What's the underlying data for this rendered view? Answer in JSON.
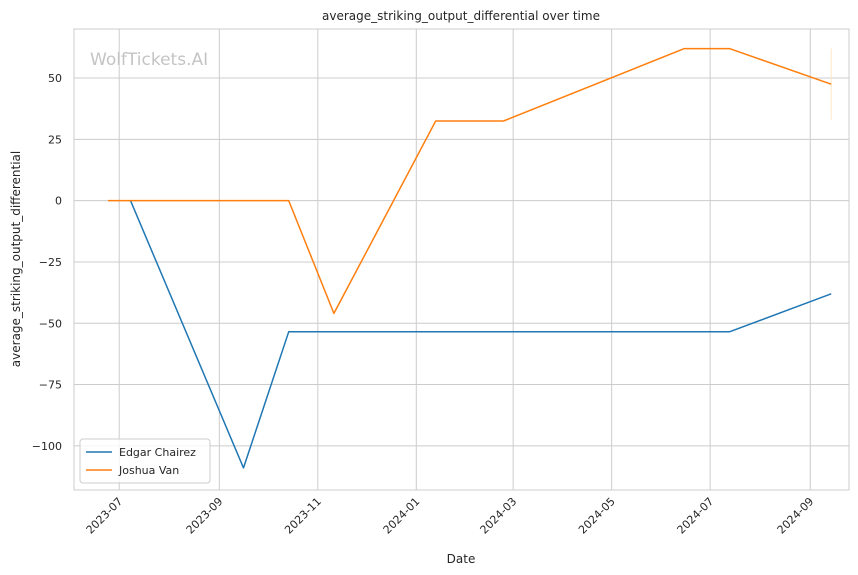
{
  "chart_data": {
    "type": "line",
    "title": "average_striking_output_differential over time",
    "xlabel": "Date",
    "ylabel": "average_striking_output_differential",
    "watermark": "WolfTickets.AI",
    "xlim": [
      "2023-06-03",
      "2024-09-25"
    ],
    "ylim": [
      -118,
      70
    ],
    "x_ticks": [
      "2023-07-01",
      "2023-09-01",
      "2023-11-01",
      "2024-01-01",
      "2024-03-01",
      "2024-05-01",
      "2024-07-01",
      "2024-09-01"
    ],
    "x_tick_labels": [
      "2023-07",
      "2023-09",
      "2023-11",
      "2024-01",
      "2024-03",
      "2024-05",
      "2024-07",
      "2024-09"
    ],
    "y_ticks": [
      50,
      25,
      0,
      -25,
      -50,
      -75,
      -100
    ],
    "y_tick_labels": [
      "50",
      "25",
      "0",
      "−25",
      "−50",
      "−75",
      "−100"
    ],
    "grid": true,
    "legend_position": "lower-left",
    "series": [
      {
        "name": "Edgar Chairez",
        "color": "#1f77b4",
        "points": [
          {
            "x": "2023-07-08",
            "y": 0
          },
          {
            "x": "2023-09-16",
            "y": -109
          },
          {
            "x": "2023-10-14",
            "y": -53.5
          },
          {
            "x": "2024-07-13",
            "y": -53.5
          },
          {
            "x": "2024-09-14",
            "y": -38
          }
        ]
      },
      {
        "name": "Joshua Van",
        "color": "#ff7f0e",
        "points": [
          {
            "x": "2023-06-24",
            "y": 0
          },
          {
            "x": "2023-10-14",
            "y": 0
          },
          {
            "x": "2023-11-11",
            "y": -46
          },
          {
            "x": "2024-01-13",
            "y": 32.5
          },
          {
            "x": "2024-02-24",
            "y": 32.5
          },
          {
            "x": "2024-06-15",
            "y": 62
          },
          {
            "x": "2024-07-13",
            "y": 62
          },
          {
            "x": "2024-09-14",
            "y": 47.5
          }
        ]
      }
    ],
    "annotations": [
      {
        "x": "2024-09-14",
        "y_range": [
          33,
          62
        ],
        "color": "#ffe8c8"
      }
    ]
  }
}
